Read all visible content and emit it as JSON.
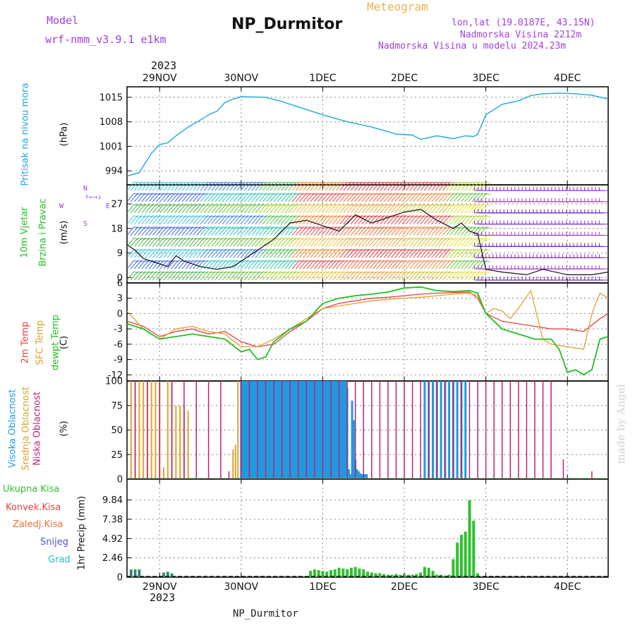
{
  "header": {
    "model_label": "Model",
    "model_name": "wrf-nmm_v3.9.1 e1km",
    "meteogram_label": "Meteogram",
    "station": "NP_Durmitor",
    "lonlat": "lon,lat (19.0187E, 43.15N)",
    "elevation": "Nadmorska Visina 2212m",
    "model_elevation": "Nadmorska Visina u modelu 2024.23m",
    "year_top": "2023",
    "year_bottom": "2023",
    "footer_station": "NP_Durmitor",
    "watermark": "made by Angel"
  },
  "colors": {
    "pressure": "#1ca8e0",
    "temp2m": "#e84040",
    "sfc_temp": "#e0a030",
    "dewpoint": "#20c020",
    "high_cloud": "#1f9ae0",
    "mid_cloud": "#d9a62e",
    "low_cloud": "#c0207a",
    "total_precip": "#30c030",
    "conv_precip": "#e84040",
    "freezing": "#f07030",
    "snow": "#5050d8",
    "grad": "#20c0c0"
  },
  "panel_labels": {
    "pressure": [
      "Pritisak na nivou mora",
      "(hPa)"
    ],
    "wind": [
      "10m Vjetar",
      "Brzina i Pravac",
      "(m/s)"
    ],
    "compass": [
      "N",
      "W",
      "E",
      "S"
    ],
    "temp": [
      "2m Temp",
      "SFC Temp",
      "dewpt Temp",
      "(C)"
    ],
    "cloud": [
      "Visoka Oblacnost",
      "Srednja Oblacnost",
      "Niska Oblacnost",
      "(%)"
    ],
    "precip_legend": [
      "Ukupna Kisa",
      "Konvek.Kisa",
      "Zaledj.Kisa",
      "Snijeg",
      "Grad"
    ],
    "precip_unit": "1hr Precip (mm)"
  },
  "chart_data": [
    {
      "type": "line",
      "panel": "pressure",
      "x_axis": {
        "ticks": [
          "29NOV",
          "30NOV",
          "1DEC",
          "2DEC",
          "3DEC",
          "4DEC"
        ],
        "range_days": [
          28.6,
          34.5
        ]
      },
      "ylabel": "(hPa)",
      "yticks": [
        994,
        1001,
        1008,
        1015
      ],
      "ylim": [
        990,
        1018
      ],
      "grid": true,
      "series": [
        {
          "name": "Pritisak na nivou mora",
          "x": [
            28.6,
            28.75,
            28.9,
            29.0,
            29.1,
            29.2,
            29.35,
            29.5,
            29.6,
            29.7,
            29.8,
            29.9,
            30.0,
            30.3,
            30.5,
            30.8,
            31.0,
            31.3,
            31.6,
            31.9,
            32.1,
            32.2,
            32.4,
            32.6,
            32.75,
            32.85,
            32.9,
            33.0,
            33.2,
            33.4,
            33.55,
            33.7,
            33.9,
            34.1,
            34.3,
            34.5
          ],
          "values": [
            992.5,
            993.5,
            999,
            1001.5,
            1002,
            1004,
            1006.5,
            1008.5,
            1010,
            1011,
            1013.5,
            1014.5,
            1015.2,
            1015,
            1013.8,
            1011.5,
            1010,
            1008,
            1006.5,
            1004.5,
            1004.2,
            1003,
            1004,
            1003.2,
            1004,
            1003.8,
            1004.5,
            1010,
            1013,
            1014,
            1015.5,
            1016,
            1016.2,
            1016,
            1015.6,
            1014.5
          ]
        }
      ]
    },
    {
      "type": "line",
      "panel": "wind",
      "ylabel": "(m/s)",
      "yticks": [
        0,
        9,
        18,
        27
      ],
      "ylim": [
        -2,
        34
      ],
      "grid": true,
      "series": [
        {
          "name": "10m wind speed",
          "x": [
            28.6,
            28.7,
            28.8,
            29.0,
            29.1,
            29.2,
            29.3,
            29.5,
            29.7,
            29.9,
            30.0,
            30.2,
            30.4,
            30.6,
            30.8,
            31.0,
            31.2,
            31.4,
            31.6,
            31.8,
            32.0,
            32.2,
            32.4,
            32.6,
            32.7,
            32.8,
            32.9,
            33.0,
            33.2,
            33.5,
            33.7,
            34.0,
            34.3,
            34.5
          ],
          "values": [
            12,
            10,
            7,
            5,
            4,
            8,
            6,
            4,
            3,
            4,
            6,
            10,
            14,
            20,
            21,
            19,
            17,
            23,
            20,
            22,
            24,
            25,
            21,
            18,
            20,
            17,
            16,
            3,
            2,
            1,
            3,
            1,
            1,
            2
          ]
        }
      ]
    },
    {
      "type": "line",
      "panel": "temperature",
      "ylabel": "(C)",
      "yticks": [
        -12,
        -9,
        -6,
        -3,
        0,
        3,
        6
      ],
      "ylim": [
        -13.2,
        6
      ],
      "grid": true,
      "series": [
        {
          "name": "2m Temp",
          "x": [
            28.6,
            28.8,
            29.0,
            29.2,
            29.4,
            29.6,
            29.8,
            30.0,
            30.2,
            30.4,
            30.6,
            30.8,
            31.0,
            31.2,
            31.4,
            31.6,
            31.8,
            32.0,
            32.2,
            32.4,
            32.6,
            32.8,
            32.9,
            33.0,
            33.2,
            33.4,
            33.6,
            33.8,
            34.0,
            34.2,
            34.4,
            34.5
          ],
          "values": [
            -1.5,
            -2.5,
            -4.5,
            -3.5,
            -3.0,
            -4.0,
            -3.5,
            -5.5,
            -6.5,
            -6.0,
            -3.5,
            -1.5,
            1.0,
            2.0,
            2.5,
            3.0,
            3.2,
            3.5,
            3.8,
            4.0,
            4.1,
            4.2,
            3.0,
            0,
            -1.5,
            -2.0,
            -2.5,
            -3.0,
            -3.0,
            -3.5,
            -1.0,
            0
          ]
        },
        {
          "name": "SFC Temp",
          "x": [
            28.6,
            28.8,
            29.0,
            29.2,
            29.4,
            29.6,
            29.8,
            30.0,
            30.2,
            30.4,
            30.6,
            30.8,
            31.0,
            31.2,
            31.4,
            31.6,
            31.8,
            32.0,
            32.2,
            32.4,
            32.6,
            32.8,
            32.9,
            33.0,
            33.1,
            33.2,
            33.3,
            33.4,
            33.55,
            33.7,
            33.8,
            34.0,
            34.2,
            34.3,
            34.4,
            34.5
          ],
          "values": [
            0.5,
            -3.0,
            -5.0,
            -3.0,
            -2.5,
            -3.5,
            -4.0,
            -6.5,
            -6.5,
            -5.0,
            -3.0,
            -1.0,
            1.0,
            1.5,
            2.0,
            2.5,
            2.8,
            3.0,
            3.2,
            3.5,
            3.8,
            4.0,
            3.5,
            0,
            1.0,
            0.5,
            -1.0,
            1.0,
            4.5,
            -5.0,
            -6.0,
            -6.5,
            -7.0,
            0,
            4.0,
            3.0
          ]
        },
        {
          "name": "dewpt Temp",
          "x": [
            28.6,
            28.8,
            29.0,
            29.2,
            29.4,
            29.6,
            29.8,
            30.0,
            30.1,
            30.2,
            30.3,
            30.4,
            30.6,
            30.8,
            31.0,
            31.2,
            31.4,
            31.6,
            31.8,
            32.0,
            32.2,
            32.4,
            32.6,
            32.8,
            32.9,
            33.0,
            33.2,
            33.4,
            33.6,
            33.8,
            33.9,
            34.0,
            34.1,
            34.2,
            34.3,
            34.4,
            34.5
          ],
          "values": [
            -2.0,
            -3.0,
            -5.0,
            -4.5,
            -4.0,
            -4.5,
            -5.0,
            -7.5,
            -7.0,
            -9.0,
            -8.5,
            -5.5,
            -3.0,
            -1.5,
            2.0,
            3.0,
            3.5,
            3.8,
            4.2,
            5.0,
            5.2,
            4.5,
            4.3,
            4.5,
            4.0,
            0,
            -3.0,
            -4.0,
            -5.0,
            -5.0,
            -7.0,
            -11.5,
            -11.0,
            -12.0,
            -11.0,
            -5.0,
            -4.5
          ]
        }
      ]
    },
    {
      "type": "bar",
      "panel": "cloud",
      "ylabel": "(%)",
      "yticks": [
        0,
        25,
        50,
        75,
        100
      ],
      "ylim": [
        0,
        100
      ],
      "grid": true,
      "series": [
        {
          "name": "Visoka Oblacnost",
          "x": [
            30.0,
            30.02,
            30.04,
            30.06,
            30.08,
            30.1,
            30.12,
            30.14,
            30.16,
            30.18,
            30.2,
            30.22,
            30.24,
            30.26,
            30.28,
            30.3,
            30.32,
            30.34,
            30.36,
            30.38,
            30.4,
            30.42,
            30.44,
            30.46,
            30.48,
            30.5,
            30.52,
            30.54,
            30.56,
            30.58,
            30.6,
            30.62,
            30.64,
            30.66,
            30.68,
            30.7,
            30.72,
            30.74,
            30.76,
            30.78,
            30.8,
            30.82,
            30.84,
            30.86,
            30.88,
            30.9,
            30.92,
            30.94,
            30.96,
            30.98,
            31.0,
            31.02,
            31.04,
            31.06,
            31.08,
            31.1,
            31.12,
            31.14,
            31.16,
            31.18,
            31.2,
            31.22,
            31.24,
            31.26,
            31.28,
            31.3,
            31.32,
            31.34,
            31.36,
            31.38,
            31.4,
            31.42,
            31.44,
            31.46,
            31.48,
            31.5,
            31.52,
            31.54,
            32.25,
            32.3,
            32.35,
            32.4,
            32.45,
            32.5,
            32.55,
            32.6,
            32.65,
            32.7,
            32.75
          ],
          "values": [
            100,
            100,
            100,
            100,
            100,
            100,
            100,
            100,
            100,
            100,
            100,
            100,
            100,
            100,
            100,
            100,
            100,
            100,
            100,
            100,
            100,
            100,
            100,
            100,
            100,
            100,
            100,
            100,
            100,
            100,
            100,
            100,
            100,
            100,
            100,
            100,
            100,
            100,
            100,
            100,
            100,
            100,
            100,
            100,
            100,
            100,
            100,
            100,
            100,
            100,
            100,
            100,
            100,
            100,
            100,
            100,
            100,
            100,
            100,
            100,
            100,
            100,
            100,
            100,
            100,
            93,
            10,
            5,
            80,
            60,
            20,
            10,
            8,
            6,
            5,
            5,
            5,
            5,
            100,
            100,
            100,
            100,
            100,
            100,
            100,
            100,
            100,
            100,
            100
          ]
        },
        {
          "name": "Srednja Oblacnost",
          "x": [
            28.65,
            28.7,
            28.75,
            28.8,
            28.85,
            28.9,
            28.95,
            29.0,
            29.05,
            29.1,
            29.15,
            29.2,
            29.25,
            29.3,
            29.35,
            29.9,
            29.93,
            29.96,
            30.0,
            30.1,
            30.2,
            30.3,
            30.4,
            30.5,
            30.6,
            30.7,
            30.8,
            30.9,
            31.0,
            31.1,
            32.25,
            32.35,
            32.45,
            32.55,
            32.65,
            32.75
          ],
          "values": [
            100,
            100,
            100,
            100,
            100,
            100,
            100,
            100,
            12,
            100,
            100,
            75,
            75,
            75,
            70,
            30,
            35,
            100,
            100,
            100,
            100,
            100,
            100,
            100,
            100,
            100,
            100,
            100,
            100,
            100,
            100,
            100,
            100,
            100,
            100,
            100
          ]
        },
        {
          "name": "Niska Oblacnost",
          "x": [
            28.7,
            28.85,
            29.0,
            29.15,
            29.3,
            29.45,
            29.6,
            29.75,
            29.85,
            30.0,
            30.1,
            30.2,
            30.3,
            30.4,
            30.5,
            30.6,
            30.7,
            30.8,
            30.9,
            31.0,
            31.1,
            31.2,
            31.3,
            31.4,
            31.5,
            31.6,
            31.7,
            31.8,
            31.9,
            32.0,
            32.1,
            32.2,
            32.3,
            32.4,
            32.5,
            32.6,
            32.7,
            32.8,
            32.9,
            33.0,
            33.1,
            33.2,
            33.3,
            33.4,
            33.5,
            33.6,
            33.7,
            33.8,
            33.95,
            34.3
          ],
          "values": [
            100,
            100,
            100,
            100,
            100,
            100,
            100,
            100,
            8,
            100,
            100,
            100,
            100,
            100,
            100,
            100,
            100,
            100,
            100,
            100,
            100,
            100,
            100,
            100,
            100,
            100,
            100,
            100,
            100,
            100,
            100,
            100,
            100,
            100,
            100,
            100,
            100,
            100,
            100,
            100,
            100,
            100,
            100,
            100,
            100,
            100,
            100,
            100,
            20,
            8
          ]
        }
      ]
    },
    {
      "type": "bar",
      "panel": "precipitation",
      "ylabel": "1hr Precip (mm)",
      "yticks": [
        0,
        2.46,
        4.92,
        7.38,
        9.84
      ],
      "ylim": [
        0,
        12.5
      ],
      "grid": true,
      "series": [
        {
          "name": "Ukupna Kisa",
          "x": [
            28.65,
            28.7,
            28.75,
            29.05,
            29.1,
            29.15,
            30.85,
            30.9,
            30.95,
            31.0,
            31.05,
            31.1,
            31.15,
            31.2,
            31.25,
            31.3,
            31.35,
            31.4,
            31.45,
            31.5,
            31.55,
            31.6,
            31.65,
            31.7,
            31.75,
            31.8,
            31.85,
            31.9,
            31.95,
            32.0,
            32.05,
            32.1,
            32.15,
            32.2,
            32.25,
            32.3,
            32.35,
            32.4,
            32.45,
            32.5,
            32.55,
            32.6,
            32.65,
            32.7,
            32.75,
            32.8,
            32.85,
            32.9
          ],
          "values": [
            1.0,
            1.0,
            1.0,
            0.6,
            0.7,
            0.5,
            0.8,
            1.0,
            0.9,
            0.8,
            0.7,
            0.9,
            1.0,
            1.2,
            1.1,
            1.0,
            1.2,
            1.3,
            1.1,
            1.0,
            0.7,
            0.6,
            0.5,
            0.5,
            0.4,
            0.3,
            0.3,
            0.4,
            0.3,
            0.4,
            0.3,
            0.3,
            0.4,
            0.6,
            1.3,
            1.2,
            0.8,
            0.3,
            0.3,
            0.2,
            0.3,
            2.3,
            4.4,
            5.4,
            5.8,
            9.8,
            7.2,
            0.5
          ]
        },
        {
          "name": "Snijeg",
          "x": [
            28.65,
            28.7,
            28.75,
            29.05,
            29.1,
            29.15
          ],
          "values": [
            0.9,
            0.9,
            0.9,
            0.5,
            0.6,
            0.4
          ]
        }
      ]
    }
  ]
}
